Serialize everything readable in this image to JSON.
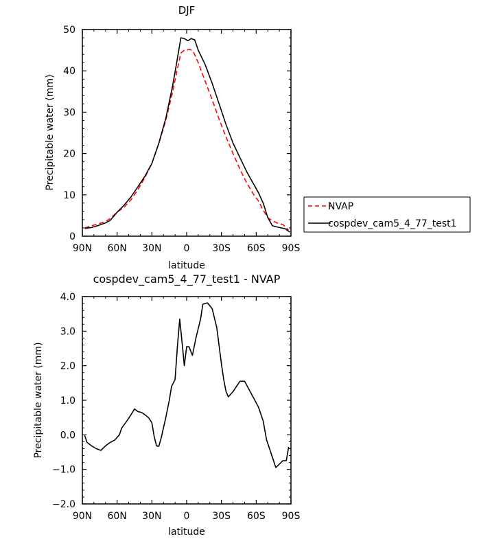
{
  "chart_data": [
    {
      "type": "line",
      "title": "DJF",
      "xlabel": "latitude",
      "ylabel": "Precipitable water (mm)",
      "xlim": [
        90,
        -90
      ],
      "ylim": [
        0,
        50
      ],
      "x_ticks": [
        90,
        60,
        30,
        0,
        -30,
        -60,
        -90
      ],
      "x_tick_labels": [
        "90N",
        "60N",
        "30N",
        "0",
        "30S",
        "60S",
        "90S"
      ],
      "y_ticks": [
        0,
        10,
        20,
        30,
        40,
        50
      ],
      "y_tick_labels": [
        "0",
        "10",
        "20",
        "30",
        "40",
        "50"
      ],
      "legend_position": "right",
      "series": [
        {
          "name": "NVAP",
          "color": "#ff0000",
          "style": "dashed",
          "points": [
            [
              88,
              2.0
            ],
            [
              82,
              2.5
            ],
            [
              76,
              3.0
            ],
            [
              70,
              3.5
            ],
            [
              66,
              4.3
            ],
            [
              60,
              5.8
            ],
            [
              54,
              7.0
            ],
            [
              48,
              8.8
            ],
            [
              42,
              11.3
            ],
            [
              36,
              14.2
            ],
            [
              30,
              17.6
            ],
            [
              24,
              22.5
            ],
            [
              18,
              28.0
            ],
            [
              12,
              35.0
            ],
            [
              8,
              40.5
            ],
            [
              5,
              44.3
            ],
            [
              2,
              45.0
            ],
            [
              -3,
              45.2
            ],
            [
              -6,
              44.5
            ],
            [
              -10,
              42.0
            ],
            [
              -16,
              37.5
            ],
            [
              -22,
              33.0
            ],
            [
              -28,
              28.3
            ],
            [
              -34,
              24.0
            ],
            [
              -40,
              20.0
            ],
            [
              -46,
              16.2
            ],
            [
              -52,
              12.8
            ],
            [
              -58,
              10.0
            ],
            [
              -62,
              8.5
            ],
            [
              -66,
              6.3
            ],
            [
              -70,
              4.5
            ],
            [
              -74,
              3.7
            ],
            [
              -78,
              3.2
            ],
            [
              -83,
              2.8
            ],
            [
              -88,
              1.5
            ]
          ]
        },
        {
          "name": "cospdev_cam5_4_77_test1",
          "color": "#000000",
          "style": "solid",
          "points": [
            [
              88,
              1.9
            ],
            [
              82,
              2.1
            ],
            [
              76,
              2.6
            ],
            [
              70,
              3.2
            ],
            [
              66,
              3.8
            ],
            [
              60,
              5.8
            ],
            [
              54,
              7.5
            ],
            [
              48,
              9.5
            ],
            [
              42,
              12.0
            ],
            [
              36,
              14.5
            ],
            [
              30,
              17.6
            ],
            [
              24,
              22.5
            ],
            [
              18,
              28.5
            ],
            [
              12,
              36.5
            ],
            [
              8,
              43.0
            ],
            [
              5,
              48.0
            ],
            [
              2,
              47.8
            ],
            [
              -1,
              47.3
            ],
            [
              -4,
              47.8
            ],
            [
              -7,
              47.5
            ],
            [
              -10,
              45.0
            ],
            [
              -16,
              41.5
            ],
            [
              -22,
              37.0
            ],
            [
              -28,
              32.0
            ],
            [
              -34,
              27.0
            ],
            [
              -40,
              22.5
            ],
            [
              -46,
              19.0
            ],
            [
              -52,
              15.5
            ],
            [
              -58,
              12.5
            ],
            [
              -62,
              10.5
            ],
            [
              -66,
              8.0
            ],
            [
              -70,
              4.5
            ],
            [
              -74,
              2.5
            ],
            [
              -80,
              2.1
            ],
            [
              -85,
              1.8
            ],
            [
              -89,
              1.0
            ]
          ]
        }
      ]
    },
    {
      "type": "line",
      "title": "cospdev_cam5_4_77_test1 - NVAP",
      "xlabel": "latitude",
      "ylabel": "Precipitable water (mm)",
      "xlim": [
        90,
        -90
      ],
      "ylim": [
        -2.0,
        4.0
      ],
      "x_ticks": [
        90,
        60,
        30,
        0,
        -30,
        -60,
        -90
      ],
      "x_tick_labels": [
        "90N",
        "60N",
        "30N",
        "0",
        "30S",
        "60S",
        "90S"
      ],
      "y_ticks": [
        -2.0,
        -1.0,
        0.0,
        1.0,
        2.0,
        3.0,
        4.0
      ],
      "y_tick_labels": [
        "−2.0",
        "−1.0",
        "0.0",
        "1.0",
        "2.0",
        "3.0",
        "4.0"
      ],
      "series": [
        {
          "name": "",
          "color": "#000000",
          "style": "solid",
          "points": [
            [
              88,
              -0.02
            ],
            [
              86,
              -0.22
            ],
            [
              82,
              -0.32
            ],
            [
              78,
              -0.4
            ],
            [
              74,
              -0.45
            ],
            [
              70,
              -0.32
            ],
            [
              66,
              -0.22
            ],
            [
              62,
              -0.15
            ],
            [
              58,
              0.0
            ],
            [
              56,
              0.2
            ],
            [
              52,
              0.38
            ],
            [
              48,
              0.58
            ],
            [
              45,
              0.75
            ],
            [
              42,
              0.67
            ],
            [
              39,
              0.65
            ],
            [
              36,
              0.58
            ],
            [
              33,
              0.5
            ],
            [
              30,
              0.35
            ],
            [
              28,
              -0.05
            ],
            [
              26,
              -0.32
            ],
            [
              24,
              -0.33
            ],
            [
              22,
              -0.1
            ],
            [
              18,
              0.5
            ],
            [
              15,
              1.0
            ],
            [
              13,
              1.4
            ],
            [
              10,
              1.6
            ],
            [
              8,
              2.55
            ],
            [
              6,
              3.35
            ],
            [
              4,
              2.7
            ],
            [
              2,
              2.0
            ],
            [
              0,
              2.55
            ],
            [
              -2,
              2.55
            ],
            [
              -5,
              2.3
            ],
            [
              -8,
              2.8
            ],
            [
              -12,
              3.35
            ],
            [
              -14,
              3.78
            ],
            [
              -18,
              3.82
            ],
            [
              -22,
              3.65
            ],
            [
              -26,
              3.1
            ],
            [
              -30,
              2.05
            ],
            [
              -32,
              1.6
            ],
            [
              -34,
              1.25
            ],
            [
              -36,
              1.1
            ],
            [
              -40,
              1.25
            ],
            [
              -42,
              1.35
            ],
            [
              -46,
              1.55
            ],
            [
              -50,
              1.55
            ],
            [
              -54,
              1.3
            ],
            [
              -58,
              1.05
            ],
            [
              -62,
              0.8
            ],
            [
              -66,
              0.4
            ],
            [
              -69,
              -0.15
            ],
            [
              -73,
              -0.55
            ],
            [
              -77,
              -0.95
            ],
            [
              -80,
              -0.85
            ],
            [
              -83,
              -0.75
            ],
            [
              -86,
              -0.75
            ],
            [
              -88,
              -0.35
            ]
          ]
        }
      ]
    }
  ]
}
